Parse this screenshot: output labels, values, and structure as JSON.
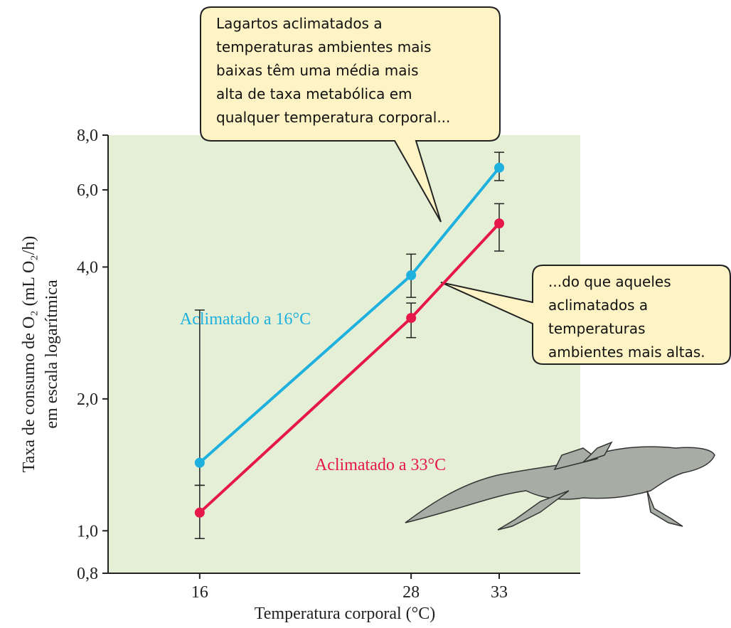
{
  "chart_data": {
    "type": "line",
    "y_label": "Taxa de consumo de O₂ (mL O₂/h)",
    "y_label_2": "em escala logarítmica",
    "x_label": "Temperatura corporal (°C)",
    "x": [
      16,
      28,
      33
    ],
    "xlim": [
      10.8,
      37.6
    ],
    "xticks": [
      16,
      28,
      33
    ],
    "ylim": [
      0.8,
      8.0
    ],
    "log_y": true,
    "yticks": [
      {
        "value": 0.8,
        "label": "0,8"
      },
      {
        "value": 1.0,
        "label": "1,0"
      },
      {
        "value": 2.0,
        "label": "2,0"
      },
      {
        "value": 4.0,
        "label": "4,0"
      },
      {
        "value": 6.0,
        "label": "6,0"
      },
      {
        "value": 8.0,
        "label": "8,0"
      }
    ],
    "background": "#e4efd6",
    "series": [
      {
        "name": "Aclimatado a 16°C",
        "color": "#1eb0de",
        "values": [
          1.43,
          3.83,
          6.74
        ],
        "error_low": [
          1.27,
          3.41,
          6.3
        ],
        "error_high": [
          3.19,
          4.28,
          7.31
        ]
      },
      {
        "name": "Aclimatado a 33°C",
        "color": "#e6174b",
        "values": [
          1.1,
          3.06,
          5.03
        ],
        "error_low": [
          0.96,
          2.76,
          4.35
        ],
        "error_high": [
          1.27,
          3.31,
          5.58
        ]
      }
    ],
    "annotations": [
      {
        "lines": [
          "Lagartos aclimatados a",
          "temperaturas ambientes mais",
          "baixas têm uma média mais",
          "alta de taxa metabólica em",
          "qualquer temperatura corporal..."
        ]
      },
      {
        "lines": [
          "...do que aqueles",
          "aclimatados a",
          "temperaturas",
          "ambientes mais altas."
        ]
      }
    ]
  }
}
